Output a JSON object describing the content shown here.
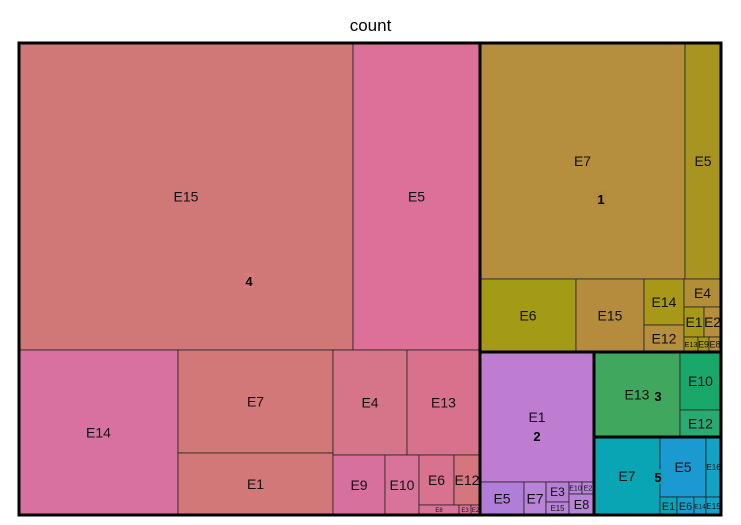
{
  "chart_data": {
    "type": "treemap",
    "title": "count",
    "groups": [
      {
        "name": "4",
        "color": "#d97a7a",
        "children": [
          {
            "label": "E15",
            "value": 27,
            "color": "#d07878"
          },
          {
            "label": "E5",
            "value": 10.5,
            "color": "#dc7099"
          },
          {
            "label": "E14",
            "value": 8.5,
            "color": "#d8719f"
          },
          {
            "label": "E7",
            "value": 5.5,
            "color": "#d27878"
          },
          {
            "label": "E1",
            "value": 3.5,
            "color": "#d27878"
          },
          {
            "label": "E4",
            "value": 4,
            "color": "#d6748a"
          },
          {
            "label": "E13",
            "value": 4,
            "color": "#d8728c"
          },
          {
            "label": "E9",
            "value": 2.5,
            "color": "#d8709e"
          },
          {
            "label": "E10",
            "value": 2,
            "color": "#d8739a"
          },
          {
            "label": "E6",
            "value": 1.6,
            "color": "#d8728e"
          },
          {
            "label": "E12",
            "value": 1.2,
            "color": "#d4767e"
          },
          {
            "label": "E8",
            "value": 0.5,
            "color": "#d8749a"
          },
          {
            "label": "E3",
            "value": 0.15,
            "color": "#d8749a"
          },
          {
            "label": "E2",
            "value": 0.08,
            "color": "#d8749a"
          }
        ]
      },
      {
        "name": "1",
        "color": "#b08c3a",
        "children": [
          {
            "label": "E7",
            "value": 18,
            "color": "#b58f3e"
          },
          {
            "label": "E5",
            "value": 4.5,
            "color": "#a89420"
          },
          {
            "label": "E6",
            "value": 3.6,
            "color": "#a39a15"
          },
          {
            "label": "E15",
            "value": 2.6,
            "color": "#b58c3e"
          },
          {
            "label": "E14",
            "value": 1,
            "color": "#a79818"
          },
          {
            "label": "E4",
            "value": 0.8,
            "color": "#b28f36"
          },
          {
            "label": "E12",
            "value": 0.8,
            "color": "#b58f3e"
          },
          {
            "label": "E1",
            "value": 0.4,
            "color": "#a79818"
          },
          {
            "label": "E2",
            "value": 0.35,
            "color": "#b58f3e"
          },
          {
            "label": "E13",
            "value": 0.14,
            "color": "#a79818"
          },
          {
            "label": "E9",
            "value": 0.1,
            "color": "#a79818"
          },
          {
            "label": "E8",
            "value": 0.08,
            "color": "#b58f3e"
          }
        ]
      },
      {
        "name": "2",
        "color": "#c07cd2",
        "children": [
          {
            "label": "E1",
            "value": 5,
            "color": "#bf7dd2"
          },
          {
            "label": "E5",
            "value": 1,
            "color": "#b07ed8"
          },
          {
            "label": "E7",
            "value": 0.6,
            "color": "#b983d8"
          },
          {
            "label": "E3",
            "value": 0.4,
            "color": "#b680d4"
          },
          {
            "label": "E15",
            "value": 0.5,
            "color": "#b983d8"
          },
          {
            "label": "E10",
            "value": 0.15,
            "color": "#b983d8"
          },
          {
            "label": "E2",
            "value": 0.15,
            "color": "#b983d8"
          },
          {
            "label": "E8",
            "value": 0.1,
            "color": "#b983d8"
          }
        ]
      },
      {
        "name": "3",
        "color": "#3ea760",
        "children": [
          {
            "label": "E13",
            "value": 3,
            "color": "#40a75e"
          },
          {
            "label": "E10",
            "value": 1.5,
            "color": "#1aa86a"
          },
          {
            "label": "E12",
            "value": 0.9,
            "color": "#2aaa72"
          }
        ]
      },
      {
        "name": "5",
        "color": "#0aa5b5",
        "children": [
          {
            "label": "E7",
            "value": 2.5,
            "color": "#0aa5b5"
          },
          {
            "label": "E5",
            "value": 1.6,
            "color": "#1a9ad0"
          },
          {
            "label": "E1",
            "value": 0.6,
            "color": "#0aa5b5"
          },
          {
            "label": "E6",
            "value": 0.5,
            "color": "#18a0cc"
          },
          {
            "label": "E14",
            "value": 0.3,
            "color": "#14a3c8"
          },
          {
            "label": "E16",
            "value": 0.3,
            "color": "#12a4c4"
          },
          {
            "label": "E15",
            "value": 0.15,
            "color": "#14a3c8"
          }
        ]
      }
    ]
  }
}
